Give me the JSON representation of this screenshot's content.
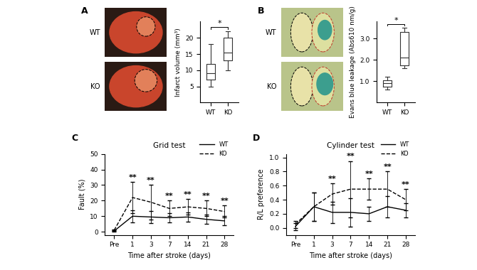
{
  "chart_data": [
    {
      "type": "box",
      "panel_label": "A",
      "image_labels": [
        "WT",
        "KO"
      ],
      "y_label": "Infarct volume (mm³)",
      "categories": [
        "WT",
        "KO"
      ],
      "stats": [
        {
          "min": 5,
          "q1": 7,
          "median": 9,
          "q3": 12,
          "max": 18
        },
        {
          "min": 10,
          "q1": 13,
          "median": 15.5,
          "q3": 20,
          "max": 22
        }
      ],
      "significance": "*",
      "color": "#333333",
      "ylim": [
        0,
        25
      ],
      "yticks": [
        5,
        10,
        15,
        20
      ]
    },
    {
      "type": "box",
      "panel_label": "B",
      "image_labels": [
        "WT",
        "KO"
      ],
      "y_label": "Evans blue leakage (Abs610 nm/g)",
      "categories": [
        "WT",
        "KO"
      ],
      "stats": [
        {
          "min": 0.6,
          "q1": 0.75,
          "median": 0.9,
          "q3": 1.05,
          "max": 1.2
        },
        {
          "min": 1.6,
          "q1": 1.75,
          "median": 2.1,
          "q3": 3.3,
          "max": 3.5
        }
      ],
      "significance": "*",
      "color": "#333333",
      "ylim": [
        0,
        3.8
      ],
      "yticks": [
        {
          "value": 1,
          "label": "1.0"
        },
        {
          "value": 2,
          "label": "2.0"
        },
        {
          "value": 3,
          "label": "3.0"
        }
      ]
    },
    {
      "type": "line",
      "panel_label": "C",
      "title": "Grid test",
      "x_label": "Time after stroke (days)",
      "y_label": "Fault (%)",
      "categories": [
        "Pre",
        "1",
        "3",
        "7",
        "14",
        "21",
        "28"
      ],
      "series": [
        {
          "name": "WT",
          "color": "#000000",
          "line_style": "solid",
          "values": [
            0.5,
            10,
            9.5,
            9,
            9.5,
            8,
            7
          ],
          "errors": [
            0.5,
            4,
            4,
            3,
            3,
            3,
            3
          ]
        },
        {
          "name": "KO",
          "color": "#000000",
          "line_style": "dashed",
          "values": [
            1,
            22,
            19,
            15,
            16,
            15,
            13
          ],
          "errors": [
            0.5,
            10,
            11,
            5,
            5,
            5,
            4
          ]
        }
      ],
      "significance": [
        null,
        "**",
        "**",
        "**",
        "**",
        "**",
        "**"
      ],
      "legend": "upper right",
      "ylim": [
        -2,
        50
      ],
      "yticks": [
        0,
        10,
        20,
        30,
        40,
        50
      ]
    },
    {
      "type": "line",
      "panel_label": "D",
      "title": "Cylinder test",
      "x_label": "Time after stroke (days)",
      "y_label": "R/L preference",
      "categories": [
        "Pre",
        "1",
        "3",
        "7",
        "14",
        "21",
        "28"
      ],
      "series": [
        {
          "name": "WT",
          "color": "#000000",
          "line_style": "solid",
          "values": [
            0.02,
            0.3,
            0.22,
            0.22,
            0.2,
            0.3,
            0.25
          ],
          "errors": [
            0.05,
            0.2,
            0.15,
            0.2,
            0.1,
            0.15,
            0.1
          ]
        },
        {
          "name": "KO",
          "color": "#000000",
          "line_style": "dashed",
          "values": [
            0.05,
            0.3,
            0.48,
            0.55,
            0.55,
            0.55,
            0.4
          ],
          "errors": [
            0.05,
            0.2,
            0.15,
            0.4,
            0.15,
            0.25,
            0.15
          ]
        }
      ],
      "significance": [
        null,
        null,
        "**",
        "**",
        "**",
        "**",
        "**"
      ],
      "legend": "upper right",
      "ylim": [
        -0.1,
        1.05
      ],
      "yticks": [
        {
          "value": 0,
          "label": "0.0"
        },
        {
          "value": 0.2,
          "label": "0.2"
        },
        {
          "value": 0.4,
          "label": "0.4"
        },
        {
          "value": 0.6,
          "label": "0.6"
        },
        {
          "value": 0.8,
          "label": "0.8"
        },
        {
          "value": 1,
          "label": "1.0"
        }
      ]
    }
  ]
}
